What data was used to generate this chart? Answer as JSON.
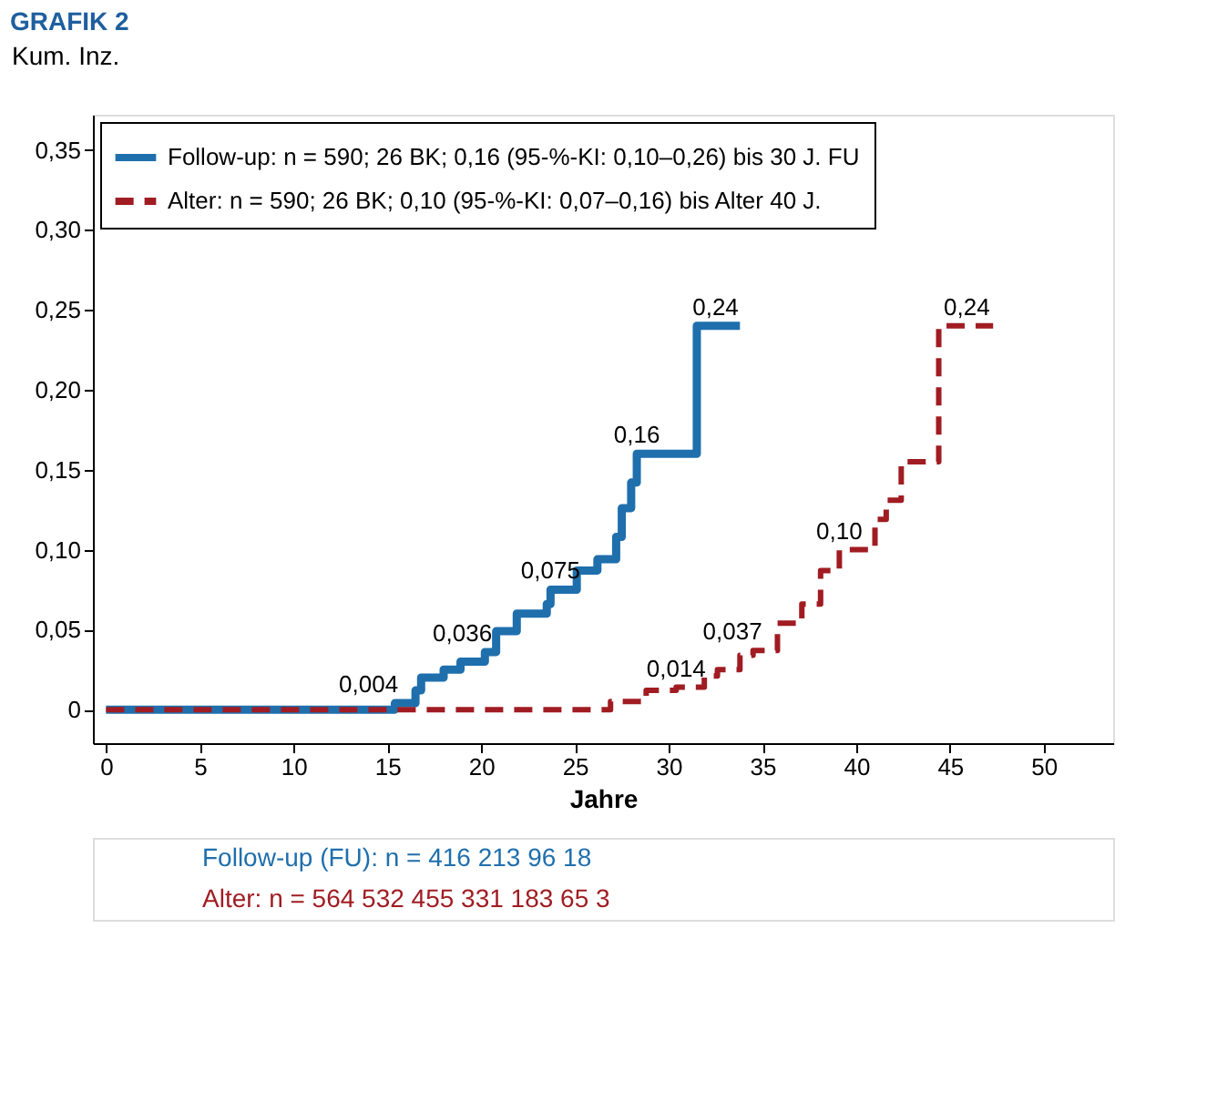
{
  "chart_data": {
    "type": "step",
    "title": "GRAFIK 2",
    "xlabel": "Jahre",
    "ylabel": "Kum. Inz.",
    "xlim": [
      -0.7,
      53.7
    ],
    "ylim": [
      -0.021,
      0.372
    ],
    "xticks": [
      0,
      5,
      10,
      15,
      20,
      25,
      30,
      35,
      40,
      45,
      50
    ],
    "yticks": [
      0,
      {
        "value": 0.05,
        "label": "0,05"
      },
      {
        "value": 0.1,
        "label": "0,10"
      },
      {
        "value": 0.15,
        "label": "0,15"
      },
      {
        "value": 0.2,
        "label": "0,20"
      },
      {
        "value": 0.25,
        "label": "0,25"
      },
      {
        "value": 0.3,
        "label": "0,30"
      },
      {
        "value": 0.35,
        "label": "0,35"
      }
    ],
    "grid": false,
    "legend": "top left",
    "marker": "none",
    "series": [
      {
        "name": "Follow-up: n = 590; 26 BK; 0,16 (95-%-KI: 0,10–0,26) bis 30 J. FU",
        "color": "#1f6fad",
        "line_style": "solid",
        "x": [
          0,
          15.4,
          16.5,
          16.8,
          18,
          18.9,
          20.2,
          20.8,
          21.9,
          23.5,
          23.7,
          25.1,
          26.2,
          27.2,
          27.5,
          28.0,
          28.3,
          31.5,
          33.8
        ],
        "values": [
          0,
          0.004,
          0.012,
          0.02,
          0.025,
          0.03,
          0.036,
          0.049,
          0.06,
          0.066,
          0.075,
          0.087,
          0.094,
          0.108,
          0.126,
          0.142,
          0.16,
          0.24,
          0.24
        ]
      },
      {
        "name": "Alter:       n = 590; 26 BK; 0,10 (95-%-KI: 0,07–0,16) bis Alter 40 J.",
        "color": "#a01c22",
        "line_style": "dashed",
        "x": [
          0,
          26.9,
          28.8,
          30.4,
          31.9,
          32.6,
          33.8,
          34.5,
          35.8,
          37.1,
          38.1,
          39.1,
          41.0,
          41.6,
          42.4,
          44.4,
          47.3
        ],
        "values": [
          0,
          0.005,
          0.012,
          0.014,
          0.021,
          0.025,
          0.034,
          0.037,
          0.054,
          0.066,
          0.087,
          0.1,
          0.119,
          0.131,
          0.155,
          0.24,
          0.24
        ]
      }
    ],
    "annotations": [
      {
        "text": "0,004",
        "x": 14,
        "y": 0.004
      },
      {
        "text": "0,036",
        "x": 19,
        "y": 0.036
      },
      {
        "text": "0,075",
        "x": 23.7,
        "y": 0.075
      },
      {
        "text": "0,16",
        "x": 28.3,
        "y": 0.16
      },
      {
        "text": "0,24",
        "x": 32.5,
        "y": 0.24
      },
      {
        "text": "0,014",
        "x": 30.4,
        "y": 0.014
      },
      {
        "text": "0,037",
        "x": 33.4,
        "y": 0.037
      },
      {
        "text": "0,10",
        "x": 39.1,
        "y": 0.1
      },
      {
        "text": "0,24",
        "x": 45.9,
        "y": 0.24
      },
      "Follow-up (FU): n = 416   213   96   18",
      "Alter:                 n = 564   532   455   331   183   65   3"
    ]
  }
}
